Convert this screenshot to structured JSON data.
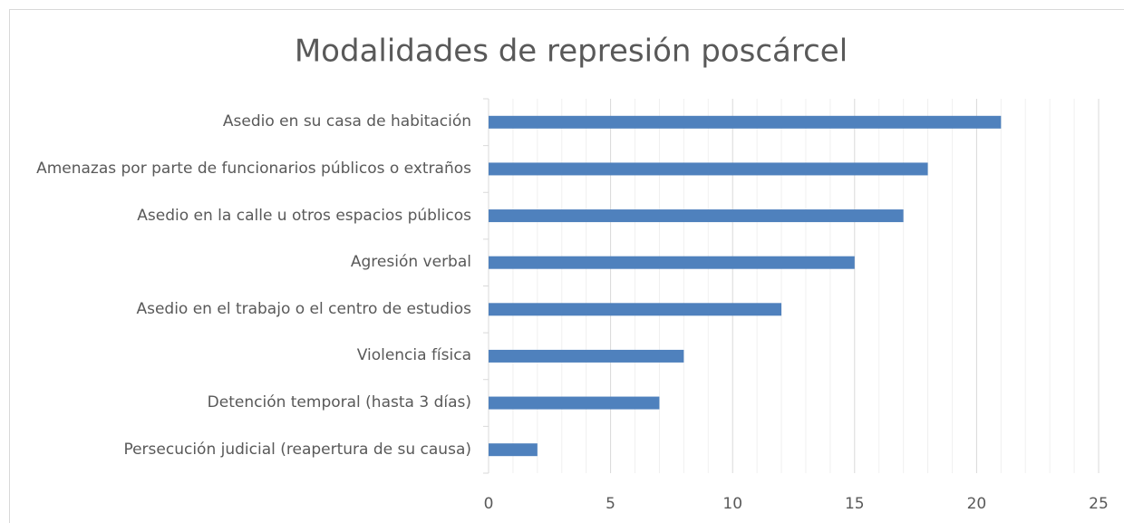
{
  "chart_data": {
    "type": "barh",
    "title": "Modalidades de represión poscárcel",
    "categories": [
      "Asedio en su casa de habitación",
      "Amenazas por parte de funcionarios públicos o extraños",
      "Asedio en la calle u otros espacios públicos",
      "Agresión verbal",
      "Asedio en el trabajo o el centro de estudios",
      "Violencia física",
      "Detención temporal (hasta 3 días)",
      "Persecución judicial (reapertura de su causa)"
    ],
    "values": [
      21,
      18,
      17,
      15,
      12,
      8,
      7,
      2
    ],
    "color": "#4f81bd",
    "xlim": [
      0,
      25
    ],
    "xticks": [
      0,
      5,
      10,
      15,
      20,
      25
    ],
    "xminor_ticks": [
      1,
      2,
      3,
      4,
      6,
      7,
      8,
      9,
      11,
      12,
      13,
      14,
      16,
      17,
      18,
      19,
      21,
      22,
      23,
      24
    ],
    "grid": true
  }
}
